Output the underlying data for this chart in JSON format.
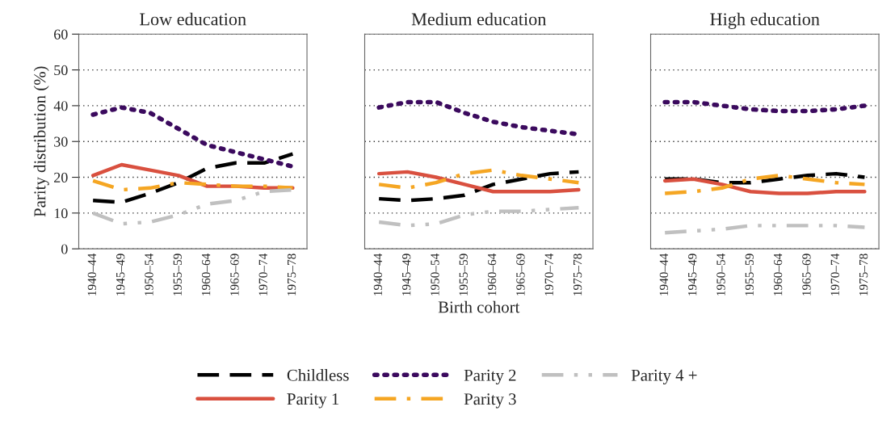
{
  "chart_data": [
    {
      "type": "line",
      "title": "Low education",
      "ylabel": "Parity distribution (%)",
      "categories": [
        "1940–44",
        "1945–49",
        "1950–54",
        "1955–59",
        "1960–64",
        "1965–69",
        "1970–74",
        "1975–78"
      ],
      "ylim": [
        0,
        60
      ],
      "yticks": [
        0,
        10,
        20,
        30,
        40,
        50,
        60
      ],
      "grid": "y",
      "legend": "bottom",
      "series": [
        {
          "name": "Childless",
          "color": "#000000",
          "line_style": "dashed",
          "values": [
            13.5,
            13,
            15.5,
            18.5,
            22.5,
            24,
            24,
            26.5
          ]
        },
        {
          "name": "Parity 1",
          "color": "#d9503f",
          "line_style": "solid",
          "values": [
            20.5,
            23.5,
            22,
            20.5,
            17.5,
            17.5,
            17,
            17
          ]
        },
        {
          "name": "Parity 2",
          "color": "#3b0a5e",
          "line_style": "dotted",
          "values": [
            37.5,
            39.5,
            38,
            33.5,
            29,
            27,
            25,
            23
          ]
        },
        {
          "name": "Parity 3",
          "color": "#f5a623",
          "line_style": "dashdot",
          "values": [
            19,
            16.5,
            17,
            18.5,
            18,
            17.5,
            17.5,
            17
          ]
        },
        {
          "name": "Parity 4 +",
          "color": "#c0c0c0",
          "line_style": "dashdotdot",
          "values": [
            10,
            7,
            7.5,
            9.5,
            12.5,
            13.5,
            16,
            16.5
          ]
        }
      ]
    },
    {
      "type": "line",
      "title": "Medium education",
      "xlabel": "Birth cohort",
      "categories": [
        "1940–44",
        "1945–49",
        "1950–54",
        "1955–59",
        "1960–64",
        "1965–69",
        "1970–74",
        "1975–78"
      ],
      "ylim": [
        0,
        60
      ],
      "yticks": [
        0,
        10,
        20,
        30,
        40,
        50,
        60
      ],
      "grid": "y",
      "tick_labels": "x",
      "series": [
        {
          "color": "#000000",
          "line_style": "dashed",
          "values": [
            14,
            13.5,
            14,
            15,
            18,
            19.5,
            21,
            21.5
          ]
        },
        {
          "color": "#d9503f",
          "line_style": "solid",
          "values": [
            21,
            21.5,
            20,
            18,
            16,
            16,
            16,
            16.5
          ]
        },
        {
          "color": "#3b0a5e",
          "line_style": "dotted",
          "values": [
            39.5,
            41,
            41,
            38,
            35.5,
            34,
            33,
            32
          ]
        },
        {
          "color": "#f5a623",
          "line_style": "dashdot",
          "values": [
            18,
            17,
            18.5,
            21,
            22,
            20.5,
            19.5,
            18.5
          ]
        },
        {
          "color": "#c0c0c0",
          "line_style": "dashdotdot",
          "values": [
            7.5,
            6.5,
            7,
            9.5,
            10.5,
            10.5,
            11,
            11.5
          ]
        }
      ]
    },
    {
      "type": "line",
      "title": "High education",
      "categories": [
        "1940–44",
        "1945–49",
        "1950–54",
        "1955–59",
        "1960–64",
        "1965–69",
        "1970–74",
        "1975–78"
      ],
      "ylim": [
        0,
        60
      ],
      "yticks": [
        0,
        10,
        20,
        30,
        40,
        50,
        60
      ],
      "grid": "y",
      "tick_labels": "x",
      "series": [
        {
          "color": "#000000",
          "line_style": "dashed",
          "values": [
            19.5,
            19.5,
            18.5,
            18.5,
            19.5,
            20.5,
            21,
            20
          ]
        },
        {
          "color": "#d9503f",
          "line_style": "solid",
          "values": [
            19,
            19.5,
            18,
            16,
            15.5,
            15.5,
            16,
            16
          ]
        },
        {
          "color": "#3b0a5e",
          "line_style": "dotted",
          "values": [
            41,
            41,
            40,
            39,
            38.5,
            38.5,
            39,
            40
          ]
        },
        {
          "color": "#f5a623",
          "line_style": "dashdot",
          "values": [
            15.5,
            16,
            17,
            19.5,
            20.5,
            19.5,
            18.5,
            18
          ]
        },
        {
          "color": "#c0c0c0",
          "line_style": "dashdotdot",
          "values": [
            4.5,
            5,
            5.5,
            6.5,
            6.5,
            6.5,
            6.5,
            6
          ]
        }
      ]
    }
  ]
}
